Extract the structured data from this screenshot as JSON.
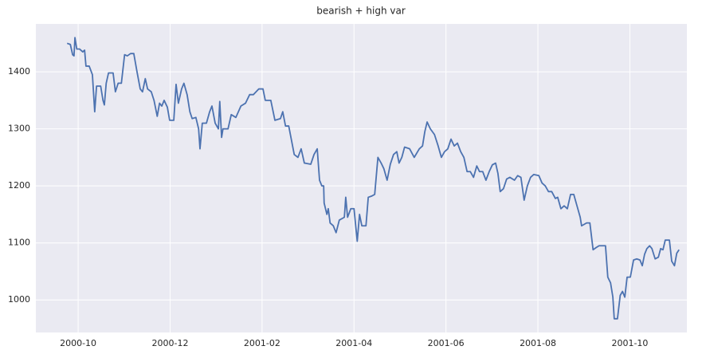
{
  "chart_data": {
    "type": "line",
    "title": "bearish + high var",
    "x": [
      9.76,
      9.83,
      9.88,
      9.91,
      9.93,
      9.97,
      10.03,
      10.1,
      10.14,
      10.17,
      10.24,
      10.31,
      10.36,
      10.4,
      10.49,
      10.54,
      10.57,
      10.61,
      10.66,
      10.76,
      10.81,
      10.87,
      10.94,
      11.01,
      11.07,
      11.14,
      11.21,
      11.28,
      11.35,
      11.4,
      11.46,
      11.51,
      11.59,
      11.65,
      11.72,
      11.77,
      11.82,
      11.87,
      11.94,
      11.99,
      12.08,
      12.13,
      12.18,
      12.25,
      12.3,
      12.37,
      12.43,
      12.48,
      12.56,
      12.62,
      12.65,
      12.7,
      12.79,
      12.86,
      12.91,
      12.98,
      13.05,
      13.08,
      13.12,
      13.15,
      13.26,
      13.33,
      13.43,
      13.54,
      13.64,
      13.73,
      13.81,
      13.93,
      14.02,
      14.07,
      14.19,
      14.28,
      14.4,
      14.45,
      14.51,
      14.58,
      14.64,
      14.7,
      14.78,
      14.85,
      14.92,
      15.06,
      15.13,
      15.2,
      15.25,
      15.3,
      15.34,
      15.35,
      15.41,
      15.44,
      15.48,
      15.55,
      15.61,
      15.68,
      15.79,
      15.82,
      15.86,
      15.93,
      16.0,
      16.07,
      16.12,
      16.17,
      16.26,
      16.31,
      16.38,
      16.45,
      16.52,
      16.59,
      16.65,
      16.72,
      16.79,
      16.86,
      16.93,
      16.98,
      17.04,
      17.1,
      17.21,
      17.31,
      17.42,
      17.49,
      17.54,
      17.59,
      17.66,
      17.75,
      17.83,
      17.9,
      17.97,
      18.04,
      18.11,
      18.18,
      18.25,
      18.32,
      18.39,
      18.46,
      18.53,
      18.6,
      18.67,
      18.73,
      18.8,
      18.87,
      18.94,
      19.01,
      19.08,
      19.13,
      19.18,
      19.25,
      19.32,
      19.39,
      19.49,
      19.56,
      19.63,
      19.7,
      19.77,
      19.84,
      19.91,
      20.02,
      20.09,
      20.16,
      20.23,
      20.3,
      20.38,
      20.43,
      20.5,
      20.57,
      20.64,
      20.71,
      20.78,
      20.85,
      20.92,
      20.95,
      21.06,
      21.13,
      21.2,
      21.27,
      21.33,
      21.4,
      21.47,
      21.52,
      21.58,
      21.63,
      21.66,
      21.73,
      21.79,
      21.84,
      21.89,
      21.94,
      22.01,
      22.08,
      22.15,
      22.22,
      22.27,
      22.32,
      22.37,
      22.43,
      22.48,
      22.55,
      22.62,
      22.67,
      22.72,
      22.77,
      22.86,
      22.91,
      22.97,
      23.02,
      23.07
    ],
    "series": [
      {
        "color": "#4c72b0",
        "values": [
          1450,
          1448,
          1430,
          1428,
          1460,
          1440,
          1440,
          1435,
          1438,
          1410,
          1410,
          1395,
          1330,
          1375,
          1375,
          1350,
          1342,
          1380,
          1398,
          1398,
          1365,
          1380,
          1380,
          1430,
          1428,
          1432,
          1432,
          1400,
          1370,
          1365,
          1388,
          1370,
          1365,
          1350,
          1322,
          1345,
          1340,
          1350,
          1338,
          1315,
          1315,
          1378,
          1345,
          1370,
          1380,
          1360,
          1330,
          1318,
          1320,
          1300,
          1265,
          1310,
          1310,
          1330,
          1340,
          1310,
          1300,
          1348,
          1285,
          1300,
          1300,
          1325,
          1320,
          1340,
          1345,
          1360,
          1360,
          1370,
          1370,
          1350,
          1350,
          1315,
          1318,
          1330,
          1305,
          1305,
          1280,
          1255,
          1250,
          1265,
          1240,
          1238,
          1255,
          1265,
          1210,
          1200,
          1200,
          1170,
          1150,
          1160,
          1135,
          1130,
          1118,
          1140,
          1145,
          1180,
          1145,
          1160,
          1160,
          1103,
          1150,
          1130,
          1130,
          1180,
          1182,
          1185,
          1250,
          1240,
          1230,
          1210,
          1238,
          1255,
          1260,
          1240,
          1250,
          1268,
          1265,
          1250,
          1265,
          1270,
          1295,
          1312,
          1300,
          1290,
          1270,
          1250,
          1260,
          1265,
          1282,
          1270,
          1275,
          1260,
          1250,
          1225,
          1225,
          1215,
          1235,
          1225,
          1225,
          1210,
          1225,
          1237,
          1240,
          1222,
          1190,
          1195,
          1212,
          1215,
          1210,
          1218,
          1215,
          1175,
          1200,
          1215,
          1220,
          1218,
          1205,
          1200,
          1190,
          1190,
          1178,
          1180,
          1160,
          1165,
          1160,
          1185,
          1185,
          1165,
          1145,
          1130,
          1135,
          1135,
          1088,
          1092,
          1095,
          1095,
          1095,
          1040,
          1030,
          1005,
          967,
          967,
          1008,
          1015,
          1005,
          1040,
          1040,
          1070,
          1072,
          1070,
          1060,
          1080,
          1090,
          1095,
          1090,
          1072,
          1075,
          1090,
          1088,
          1105,
          1105,
          1068,
          1060,
          1082,
          1088
        ]
      }
    ],
    "xlim": [
      9.08,
      23.24
    ],
    "xticks": [
      {
        "value": 10,
        "label": "2000-10"
      },
      {
        "value": 12,
        "label": "2000-12"
      },
      {
        "value": 14,
        "label": "2001-02"
      },
      {
        "value": 16,
        "label": "2001-04"
      },
      {
        "value": 18,
        "label": "2001-06"
      },
      {
        "value": 20,
        "label": "2001-08"
      },
      {
        "value": 22,
        "label": "2001-10"
      }
    ],
    "ylim": [
      943,
      1484
    ],
    "yticks": [
      1000,
      1100,
      1200,
      1300,
      1400
    ],
    "grid": true,
    "background": "#eaeaf2"
  }
}
